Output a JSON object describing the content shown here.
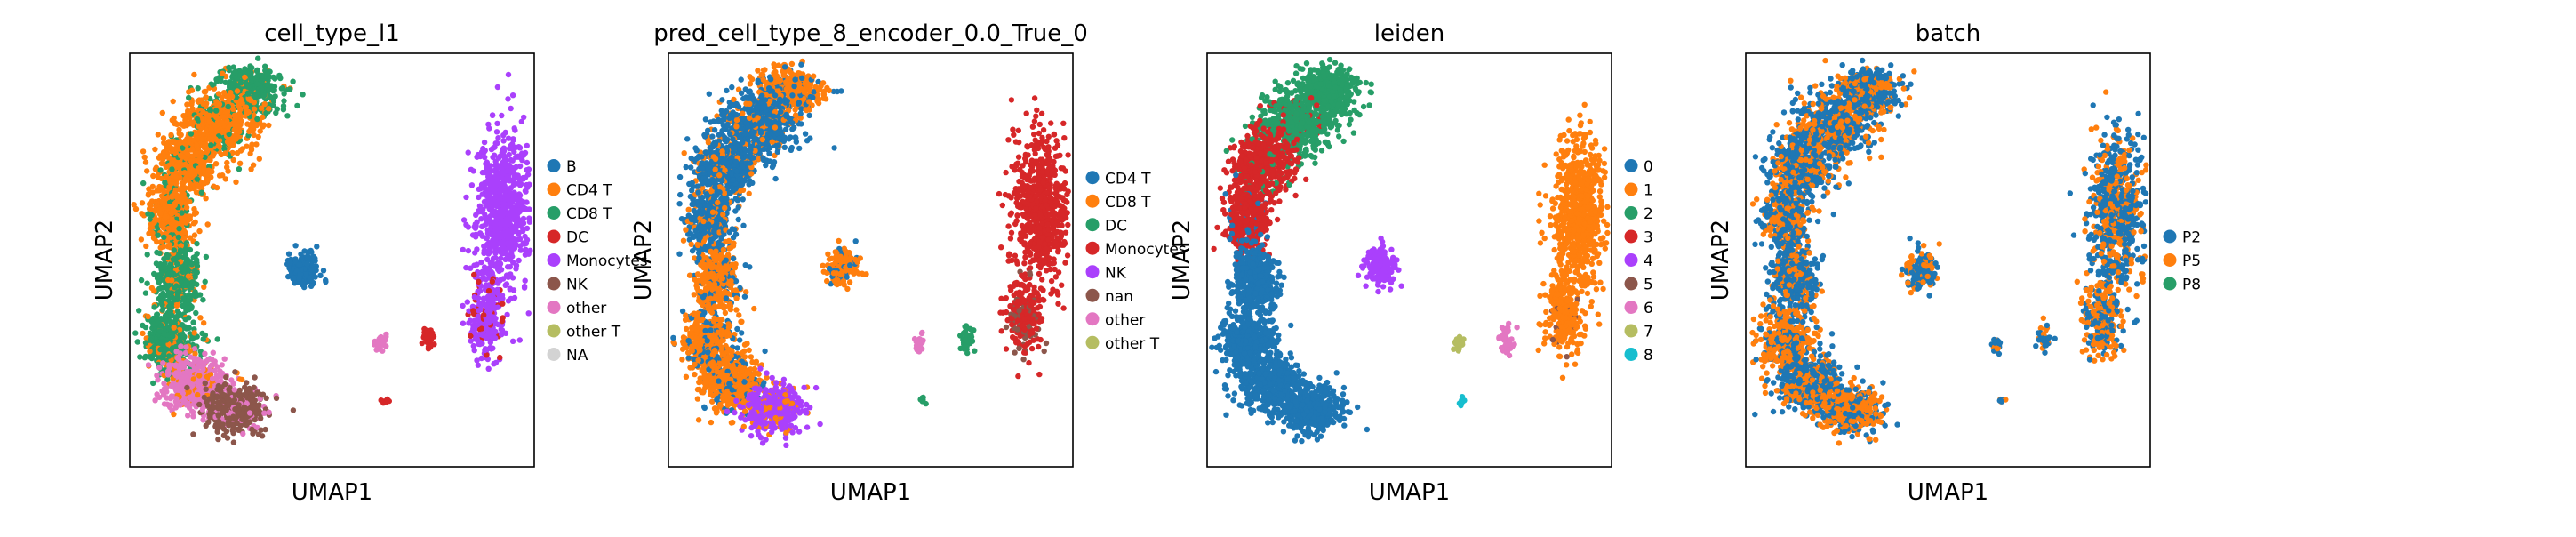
{
  "chart_data": [
    {
      "type": "scatter",
      "title": "cell_type_l1",
      "xlabel": "UMAP1",
      "ylabel": "UMAP2",
      "grid": false,
      "legend_position": "right",
      "legend": [
        {
          "label": "B",
          "color": "#1f77b4"
        },
        {
          "label": "CD4 T",
          "color": "#ff7f0e"
        },
        {
          "label": "CD8 T",
          "color": "#279e68"
        },
        {
          "label": "DC",
          "color": "#d62728"
        },
        {
          "label": "Monocytes",
          "color": "#aa40fc"
        },
        {
          "label": "NK",
          "color": "#8c564b"
        },
        {
          "label": "other",
          "color": "#e377c2"
        },
        {
          "label": "other T",
          "color": "#b5bd61"
        },
        {
          "label": "NA",
          "color": "#d3d3d3"
        }
      ]
    },
    {
      "type": "scatter",
      "title": "pred_cell_type_8_encoder_0.0_True_0",
      "xlabel": "UMAP1",
      "ylabel": "UMAP2",
      "grid": false,
      "legend_position": "right",
      "legend": [
        {
          "label": "CD4 T",
          "color": "#1f77b4"
        },
        {
          "label": "CD8 T",
          "color": "#ff7f0e"
        },
        {
          "label": "DC",
          "color": "#279e68"
        },
        {
          "label": "Monocytes",
          "color": "#d62728"
        },
        {
          "label": "NK",
          "color": "#aa40fc"
        },
        {
          "label": "nan",
          "color": "#8c564b"
        },
        {
          "label": "other",
          "color": "#e377c2"
        },
        {
          "label": "other T",
          "color": "#b5bd61"
        }
      ]
    },
    {
      "type": "scatter",
      "title": "leiden",
      "xlabel": "UMAP1",
      "ylabel": "UMAP2",
      "grid": false,
      "legend_position": "right",
      "legend": [
        {
          "label": "0",
          "color": "#1f77b4"
        },
        {
          "label": "1",
          "color": "#ff7f0e"
        },
        {
          "label": "2",
          "color": "#279e68"
        },
        {
          "label": "3",
          "color": "#d62728"
        },
        {
          "label": "4",
          "color": "#aa40fc"
        },
        {
          "label": "5",
          "color": "#8c564b"
        },
        {
          "label": "6",
          "color": "#e377c2"
        },
        {
          "label": "7",
          "color": "#b5bd61"
        },
        {
          "label": "8",
          "color": "#17becf"
        }
      ]
    },
    {
      "type": "scatter",
      "title": "batch",
      "xlabel": "UMAP1",
      "ylabel": "UMAP2",
      "grid": false,
      "legend_position": "right",
      "legend": [
        {
          "label": "P2",
          "color": "#1f77b4"
        },
        {
          "label": "P5",
          "color": "#ff7f0e"
        },
        {
          "label": "P8",
          "color": "#279e68"
        }
      ]
    }
  ]
}
